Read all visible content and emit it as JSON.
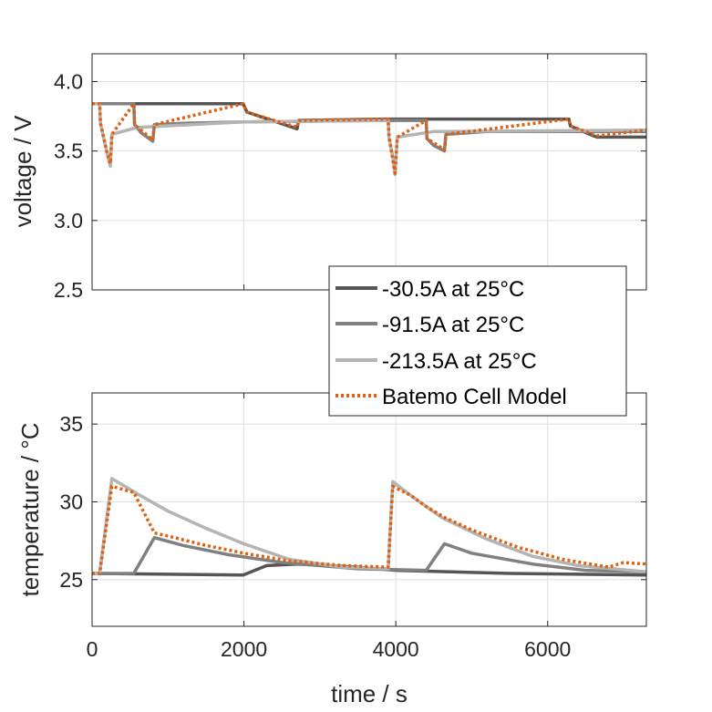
{
  "chart_data": [
    {
      "type": "line",
      "name": "voltage",
      "ylabel": "voltage / V",
      "xlabel": "",
      "xlim": [
        0,
        7300
      ],
      "ylim": [
        2.5,
        4.2
      ],
      "xticks": [
        0,
        2000,
        4000,
        6000
      ],
      "yticks": [
        2.5,
        3.0,
        3.5,
        4.0
      ],
      "ytick_labels": [
        "2.5",
        "3.0",
        "3.5",
        "4.0"
      ],
      "grid": true,
      "series": [
        {
          "name": "-30.5A at 25°C",
          "color": "#555555",
          "x": [
            0,
            1990,
            2040,
            2700,
            2720,
            3900,
            3920,
            6280,
            6300,
            6600,
            6650,
            7300
          ],
          "y": [
            3.84,
            3.84,
            3.78,
            3.66,
            3.72,
            3.73,
            3.73,
            3.73,
            3.68,
            3.61,
            3.6,
            3.6
          ]
        },
        {
          "name": "-91.5A at 25°C",
          "color": "#808080",
          "x": [
            0,
            550,
            560,
            650,
            800,
            820,
            1200,
            2000,
            3900,
            4400,
            4410,
            4500,
            4640,
            4660,
            5200,
            7300
          ],
          "y": [
            3.84,
            3.84,
            3.69,
            3.63,
            3.57,
            3.69,
            3.7,
            3.71,
            3.72,
            3.72,
            3.59,
            3.54,
            3.5,
            3.62,
            3.64,
            3.64
          ]
        },
        {
          "name": "-213.5A at 25°C",
          "color": "#b4b4b4",
          "x": [
            0,
            100,
            110,
            150,
            200,
            240,
            260,
            600,
            2000,
            3900,
            3910,
            3960,
            3990,
            4020,
            4500,
            7300
          ],
          "y": [
            3.84,
            3.84,
            3.7,
            3.6,
            3.48,
            3.39,
            3.62,
            3.67,
            3.71,
            3.72,
            3.6,
            3.46,
            3.33,
            3.6,
            3.64,
            3.65
          ]
        },
        {
          "name": "Batemo Cell Model",
          "color": "#e06010",
          "dotted": true,
          "x": [
            0,
            100,
            110,
            200,
            240,
            260,
            550,
            560,
            800,
            820,
            1990,
            2040,
            2700,
            2720,
            3900,
            3910,
            3990,
            4020,
            4400,
            4410,
            4640,
            4660,
            6280,
            6300,
            6650,
            7300
          ],
          "y": [
            3.84,
            3.84,
            3.7,
            3.48,
            3.41,
            3.62,
            3.84,
            3.69,
            3.58,
            3.69,
            3.84,
            3.78,
            3.67,
            3.72,
            3.73,
            3.6,
            3.34,
            3.6,
            3.72,
            3.59,
            3.51,
            3.62,
            3.73,
            3.68,
            3.61,
            3.65
          ]
        }
      ]
    },
    {
      "type": "line",
      "name": "temperature",
      "ylabel": "temperature / °C",
      "xlabel": "time / s",
      "xlim": [
        0,
        7300
      ],
      "ylim": [
        22,
        37
      ],
      "xticks": [
        0,
        2000,
        4000,
        6000
      ],
      "xtick_labels": [
        "0",
        "2000",
        "4000",
        "6000"
      ],
      "yticks": [
        25,
        30,
        35
      ],
      "ytick_labels": [
        "25",
        "30",
        "35"
      ],
      "grid": true,
      "series": [
        {
          "name": "-30.5A at 25°C",
          "color": "#555555",
          "x": [
            0,
            1990,
            2300,
            2700,
            3500,
            4000,
            5500,
            7300
          ],
          "y": [
            25.4,
            25.3,
            25.9,
            26.0,
            25.8,
            25.6,
            25.4,
            25.3
          ]
        },
        {
          "name": "-91.5A at 25°C",
          "color": "#808080",
          "x": [
            0,
            550,
            820,
            1200,
            1800,
            2500,
            3500,
            4400,
            4640,
            5000,
            5800,
            6500,
            7300
          ],
          "y": [
            25.4,
            25.4,
            27.7,
            27.2,
            26.6,
            26.1,
            25.7,
            25.6,
            27.3,
            26.7,
            26.0,
            25.6,
            25.5
          ]
        },
        {
          "name": "-213.5A at 25°C",
          "color": "#b4b4b4",
          "x": [
            0,
            100,
            260,
            600,
            1000,
            1500,
            2000,
            2600,
            3300,
            3900,
            3930,
            3960,
            4200,
            4600,
            5200,
            5800,
            6400,
            7300
          ],
          "y": [
            25.4,
            25.4,
            31.5,
            30.5,
            29.4,
            28.3,
            27.3,
            26.3,
            25.8,
            25.7,
            28.5,
            31.3,
            30.4,
            29.0,
            27.6,
            26.5,
            25.9,
            25.5
          ]
        },
        {
          "name": "Batemo Cell Model",
          "color": "#e06010",
          "dotted": true,
          "x": [
            0,
            100,
            260,
            550,
            820,
            1000,
            1500,
            2000,
            2600,
            3300,
            3900,
            3960,
            4200,
            4400,
            4640,
            5000,
            5600,
            6200,
            6800,
            7000,
            7300
          ],
          "y": [
            25.4,
            25.4,
            31.0,
            30.6,
            28.0,
            27.8,
            27.2,
            26.7,
            26.2,
            25.9,
            25.8,
            31.0,
            30.4,
            29.7,
            29.0,
            28.2,
            27.1,
            26.3,
            25.8,
            26.1,
            26.0
          ]
        }
      ]
    }
  ],
  "legend": [
    {
      "label": "-30.5A at 25°C",
      "color": "#555555",
      "dotted": false
    },
    {
      "label": "-91.5A at 25°C",
      "color": "#808080",
      "dotted": false
    },
    {
      "label": "-213.5A at 25°C",
      "color": "#b4b4b4",
      "dotted": false
    },
    {
      "label": "Batemo Cell Model",
      "color": "#e06010",
      "dotted": true
    }
  ]
}
